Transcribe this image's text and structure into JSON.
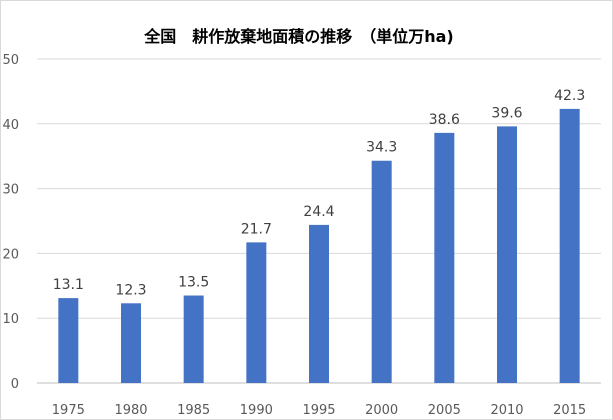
{
  "chart_data": {
    "type": "bar",
    "title": "全国　耕作放棄地面積の推移　（単位万ha)",
    "categories": [
      "1975",
      "1980",
      "1985",
      "1990",
      "1995",
      "2000",
      "2005",
      "2010",
      "2015"
    ],
    "values": [
      13.1,
      12.3,
      13.5,
      21.7,
      24.4,
      34.3,
      38.6,
      39.6,
      42.3
    ],
    "data_labels": [
      "13.1",
      "12.3",
      "13.5",
      "21.7",
      "24.4",
      "34.3",
      "38.6",
      "39.6",
      "42.3"
    ],
    "xlabel": "",
    "ylabel": "",
    "ylim": [
      0,
      50
    ],
    "yticks": [
      "0",
      "10",
      "20",
      "30",
      "40",
      "50"
    ],
    "grid": true,
    "bar_color": "#4472C4"
  }
}
